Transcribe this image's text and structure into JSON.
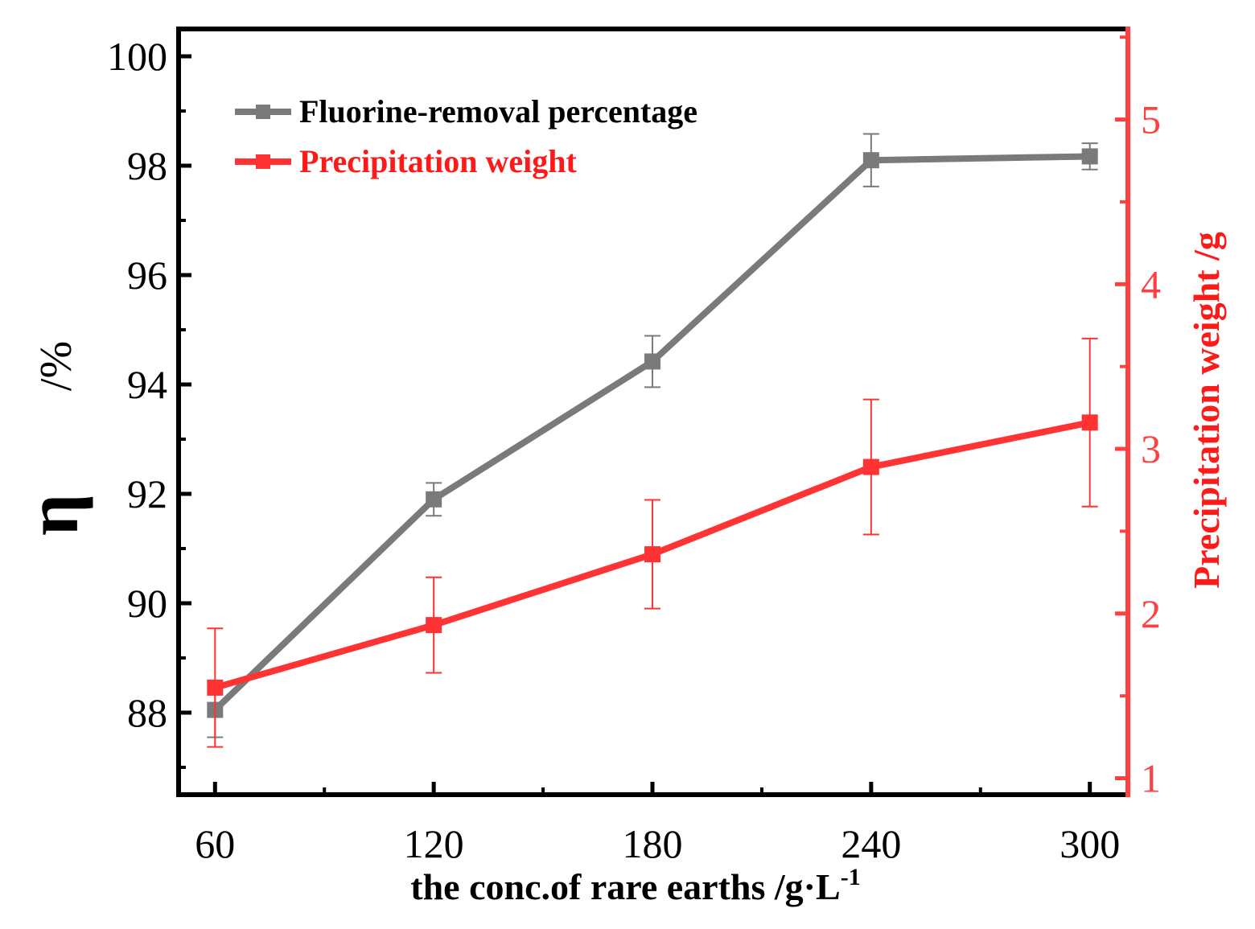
{
  "chart_data": {
    "type": "line",
    "x_title_main": "the conc.of rare earths /g·L",
    "x_title_sup": "-1",
    "y_left_title_symbol": "η",
    "y_left_title_unit": "/%",
    "y_right_title": "Precipitation  weight /g",
    "categories": [
      60,
      120,
      180,
      240,
      300
    ],
    "x_tick_labels": [
      "60",
      "120",
      "180",
      "240",
      "300"
    ],
    "xlim": [
      50,
      310
    ],
    "y_left": {
      "lim": [
        86.5,
        100.5
      ],
      "ticks": [
        88,
        90,
        92,
        94,
        96,
        98,
        100
      ],
      "tick_labels": [
        "88",
        "90",
        "92",
        "94",
        "96",
        "98",
        "100"
      ]
    },
    "y_right": {
      "lim": [
        0.9,
        5.55
      ],
      "ticks": [
        1,
        2,
        3,
        4,
        5
      ],
      "tick_labels": [
        "1",
        "2",
        "3",
        "4",
        "5"
      ]
    },
    "series": [
      {
        "name": "Fluorine-removal percentage",
        "axis": "left",
        "color": "#7a7a7a",
        "x": [
          60,
          120,
          180,
          240,
          300
        ],
        "values": [
          88.05,
          91.9,
          94.42,
          98.1,
          98.17
        ],
        "errors": [
          0.5,
          0.3,
          0.47,
          0.48,
          0.24
        ]
      },
      {
        "name": "Precipitation weight",
        "axis": "right",
        "color": "#ff3333",
        "x": [
          60,
          120,
          180,
          240,
          300
        ],
        "values": [
          1.55,
          1.93,
          2.36,
          2.89,
          3.16
        ],
        "errors": [
          0.36,
          0.29,
          0.33,
          0.41,
          0.51
        ]
      }
    ]
  },
  "legend": {
    "items": [
      {
        "label": "Fluorine-removal percentage",
        "color": "#7a7a7a"
      },
      {
        "label": "Precipitation weight",
        "color": "#ff1a1a"
      }
    ]
  },
  "colors": {
    "axis": "#000000",
    "right_axis": "#ff4040",
    "right_title": "#ff1a1a"
  }
}
